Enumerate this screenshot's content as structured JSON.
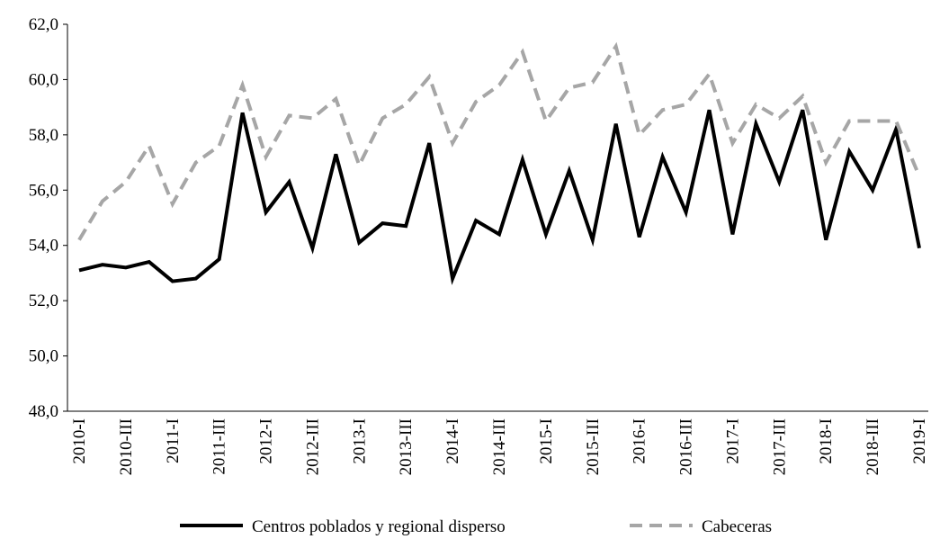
{
  "chart_data": {
    "type": "line",
    "categories": [
      "2010-I",
      null,
      "2010-III",
      null,
      "2011-I",
      null,
      "2011-III",
      null,
      "2012-I",
      null,
      "2012-III",
      null,
      "2013-I",
      null,
      "2013-III",
      null,
      "2014-I",
      null,
      "2014-III",
      null,
      "2015-I",
      null,
      "2015-III",
      null,
      "2016-I",
      null,
      "2016-III",
      null,
      "2017-I",
      null,
      "2017-III",
      null,
      "2018-I",
      null,
      "2018-III",
      null,
      "2019-I"
    ],
    "series": [
      {
        "name": "Centros poblados y regional disperso",
        "color": "#000000",
        "dashed": false,
        "values": [
          53.1,
          53.3,
          53.2,
          53.4,
          52.7,
          52.8,
          53.5,
          58.8,
          55.2,
          56.3,
          53.9,
          57.3,
          54.1,
          54.8,
          54.7,
          57.7,
          52.8,
          54.9,
          54.4,
          57.1,
          54.4,
          56.7,
          54.2,
          58.4,
          54.3,
          57.2,
          55.2,
          58.9,
          54.4,
          58.4,
          56.3,
          58.9,
          54.2,
          57.4,
          56.0,
          58.2,
          53.9
        ]
      },
      {
        "name": "Cabeceras",
        "color": "#a6a6a6",
        "dashed": true,
        "values": [
          54.2,
          55.6,
          56.3,
          57.6,
          55.5,
          57.0,
          57.6,
          59.8,
          57.2,
          58.7,
          58.6,
          59.3,
          56.9,
          58.6,
          59.1,
          60.1,
          57.7,
          59.2,
          59.8,
          61.0,
          58.5,
          59.7,
          59.9,
          61.2,
          58.0,
          58.9,
          59.1,
          60.2,
          57.7,
          59.1,
          58.6,
          59.4,
          57.0,
          58.5,
          58.5,
          58.5,
          56.5
        ]
      }
    ],
    "ylim": [
      48,
      62
    ],
    "yticks": [
      {
        "value": 48,
        "label": "48,0"
      },
      {
        "value": 50,
        "label": "50,0"
      },
      {
        "value": 52,
        "label": "52,0"
      },
      {
        "value": 54,
        "label": "54,0"
      },
      {
        "value": 56,
        "label": "56,0"
      },
      {
        "value": 58,
        "label": "58,0"
      },
      {
        "value": 60,
        "label": "60,0"
      },
      {
        "value": 62,
        "label": "62,0"
      }
    ],
    "grid": false,
    "legend": "bottom"
  }
}
